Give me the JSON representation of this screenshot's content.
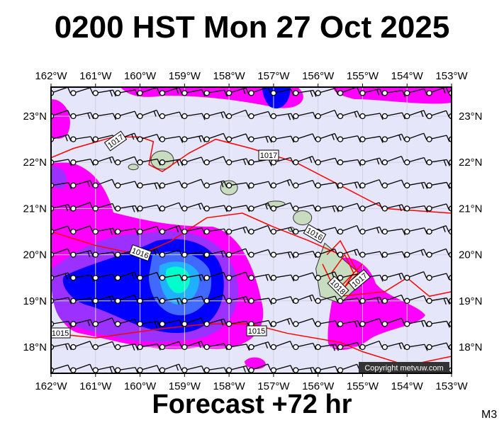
{
  "title": "0200 HST Mon 27 Oct 2025",
  "footer": "Forecast +72 hr",
  "model_code": "M3",
  "copyright": "Copyright metvuw.com",
  "lon_labels": [
    "162°W",
    "161°W",
    "160°W",
    "159°W",
    "158°W",
    "157°W",
    "156°W",
    "155°W",
    "154°W",
    "153°W"
  ],
  "lat_labels": [
    "23°N",
    "22°N",
    "21°N",
    "20°N",
    "19°N",
    "18°N"
  ],
  "isobar_labels": [
    "1017",
    "1017",
    "1016",
    "1016",
    "1018",
    "1017",
    "1015",
    "1015"
  ],
  "colors": {
    "background": "#e6e6fa",
    "isobar": "#ff0000",
    "precip_light": "#ff00ff",
    "precip_mid": "#9b30ff",
    "precip_heavy": "#0000ff",
    "precip_peak": "#00ffcc",
    "land": "#c8dcc0"
  }
}
